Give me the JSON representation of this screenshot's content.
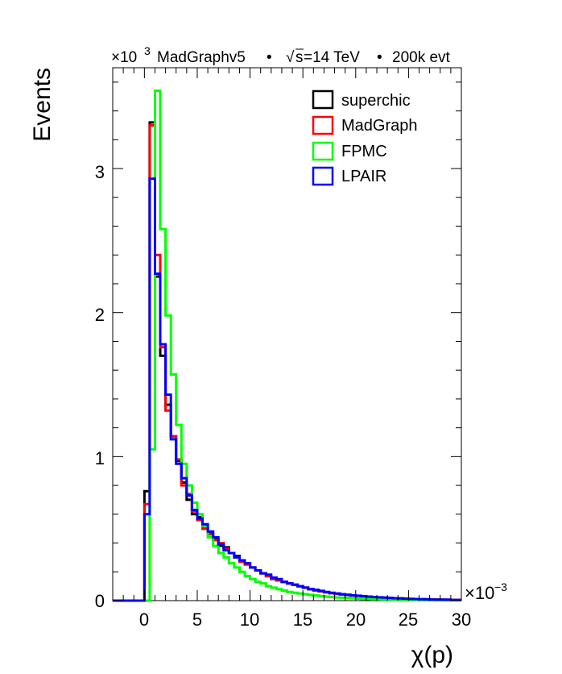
{
  "chart_data": {
    "type": "histogram",
    "header": {
      "generator": "MadGraphv5",
      "sqrt_s": "s",
      "energy": "=14 TeV",
      "sample": "200k evt",
      "separator": "•",
      "sqrt_symbol": "√"
    },
    "y_axis": {
      "title": "Events",
      "multiplier_base": "×10",
      "multiplier_exp": "3",
      "range": [
        0,
        3.7
      ],
      "ticks": [
        0,
        1,
        2,
        3
      ],
      "tick_labels": [
        "0",
        "1",
        "2",
        "3"
      ]
    },
    "x_axis": {
      "title": "χ(p)",
      "multiplier_base": "×10",
      "multiplier_exp": "−3",
      "range": [
        -3,
        30
      ],
      "ticks": [
        0,
        5,
        10,
        15,
        20,
        25,
        30
      ],
      "tick_labels": [
        "0",
        "5",
        "10",
        "15",
        "20",
        "25",
        "30"
      ]
    },
    "bin_edges_start": 0,
    "bin_width": 0.5,
    "series": [
      {
        "name": "superchic",
        "color": "#000000",
        "values": [
          0.76,
          3.32,
          2.25,
          1.7,
          1.36,
          1.14,
          0.97,
          0.82,
          0.7,
          0.6,
          0.58,
          0.5,
          0.47,
          0.43,
          0.38,
          0.37,
          0.33,
          0.31,
          0.28,
          0.26,
          0.23,
          0.21,
          0.19,
          0.17,
          0.15,
          0.14,
          0.13,
          0.12,
          0.11,
          0.1,
          0.09,
          0.08,
          0.07,
          0.065,
          0.058,
          0.052,
          0.047,
          0.043,
          0.04,
          0.036,
          0.033,
          0.03,
          0.027,
          0.025,
          0.022,
          0.02,
          0.018,
          0.016,
          0.015,
          0.013,
          0.012,
          0.011,
          0.01,
          0.009,
          0.008,
          0.007,
          0.006,
          0.006,
          0.005,
          0.005
        ]
      },
      {
        "name": "MadGraph",
        "color": "#ff0000",
        "values": [
          0.67,
          3.3,
          2.4,
          1.76,
          1.32,
          1.14,
          0.98,
          0.8,
          0.74,
          0.62,
          0.56,
          0.5,
          0.46,
          0.42,
          0.4,
          0.36,
          0.33,
          0.3,
          0.27,
          0.25,
          0.23,
          0.21,
          0.19,
          0.17,
          0.15,
          0.14,
          0.13,
          0.12,
          0.11,
          0.1,
          0.09,
          0.08,
          0.07,
          0.065,
          0.058,
          0.052,
          0.047,
          0.043,
          0.04,
          0.036,
          0.033,
          0.03,
          0.027,
          0.025,
          0.022,
          0.02,
          0.018,
          0.016,
          0.015,
          0.013,
          0.012,
          0.011,
          0.01,
          0.009,
          0.008,
          0.007,
          0.006,
          0.006,
          0.005,
          0.005
        ]
      },
      {
        "name": "FPMC",
        "color": "#00ff00",
        "values": [
          0.0,
          1.05,
          3.54,
          2.58,
          1.98,
          1.57,
          1.22,
          0.95,
          0.8,
          0.68,
          0.6,
          0.52,
          0.44,
          0.38,
          0.33,
          0.3,
          0.26,
          0.23,
          0.2,
          0.17,
          0.15,
          0.13,
          0.12,
          0.1,
          0.09,
          0.08,
          0.07,
          0.06,
          0.055,
          0.05,
          0.045,
          0.04,
          0.036,
          0.032,
          0.028,
          0.025,
          0.022,
          0.02,
          0.018,
          0.016,
          0.014,
          0.012,
          0.011,
          0.01,
          0.009,
          0.008,
          0.007,
          0.006,
          0.005,
          0.005,
          0.004,
          0.004,
          0.003,
          0.003,
          0.003,
          0.002,
          0.002,
          0.002,
          0.002,
          0.002
        ]
      },
      {
        "name": "LPAIR",
        "color": "#0000ff",
        "values": [
          0.6,
          2.93,
          2.27,
          1.78,
          1.43,
          1.12,
          0.95,
          0.85,
          0.73,
          0.63,
          0.57,
          0.53,
          0.48,
          0.44,
          0.39,
          0.35,
          0.33,
          0.3,
          0.28,
          0.26,
          0.23,
          0.21,
          0.19,
          0.18,
          0.16,
          0.15,
          0.13,
          0.12,
          0.11,
          0.1,
          0.09,
          0.08,
          0.075,
          0.068,
          0.06,
          0.055,
          0.05,
          0.045,
          0.041,
          0.037,
          0.034,
          0.031,
          0.028,
          0.025,
          0.023,
          0.021,
          0.019,
          0.017,
          0.015,
          0.014,
          0.012,
          0.011,
          0.01,
          0.009,
          0.008,
          0.007,
          0.007,
          0.006,
          0.005,
          0.005
        ]
      }
    ]
  }
}
